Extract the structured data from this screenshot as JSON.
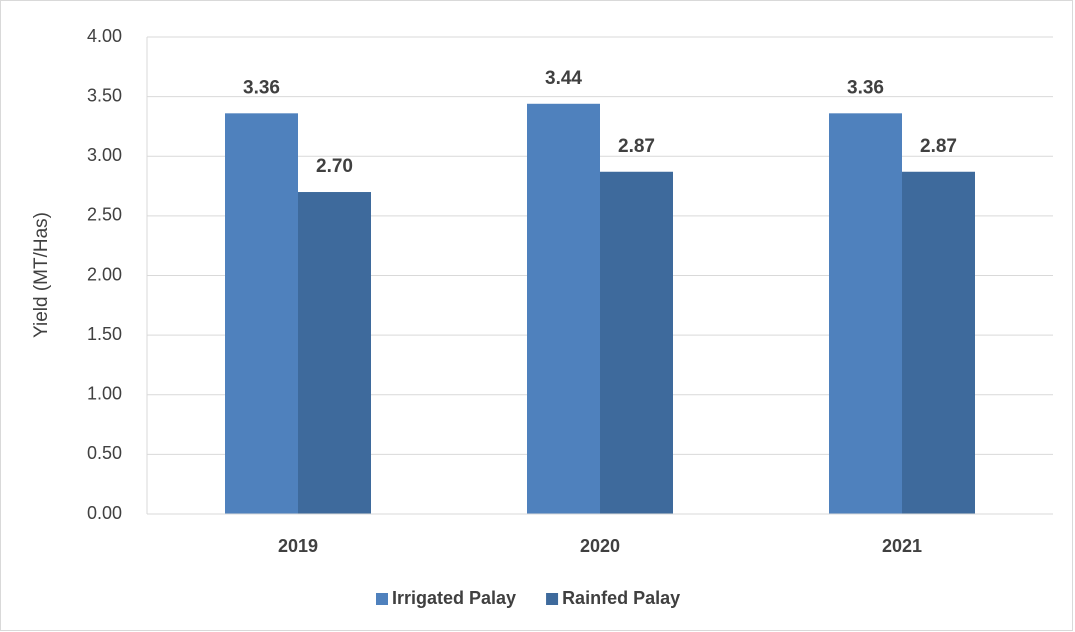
{
  "chart_data": {
    "type": "bar",
    "y_label": "Yield (MT/Has)",
    "categories": [
      "2019",
      "2020",
      "2021"
    ],
    "series": [
      {
        "name": "Irrigated Palay",
        "color": "#4f81bd",
        "values": [
          3.36,
          3.44,
          3.36
        ],
        "value_labels": [
          "3.36",
          "3.44",
          "3.36"
        ]
      },
      {
        "name": "Rainfed Palay",
        "color": "#3e6a9c",
        "values": [
          2.7,
          2.87,
          2.87
        ],
        "value_labels": [
          "2.70",
          "2.87",
          "2.87"
        ]
      }
    ],
    "ylim": [
      0,
      4
    ],
    "yticks": [
      {
        "value": 0,
        "label": "0.00"
      },
      {
        "value": 0.5,
        "label": "0.50"
      },
      {
        "value": 1,
        "label": "1.00"
      },
      {
        "value": 1.5,
        "label": "1.50"
      },
      {
        "value": 2,
        "label": "2.00"
      },
      {
        "value": 2.5,
        "label": "2.50"
      },
      {
        "value": 3,
        "label": "3.00"
      },
      {
        "value": 3.5,
        "label": "3.50"
      },
      {
        "value": 4,
        "label": "4.00"
      }
    ],
    "grid": true,
    "legend": "bottom"
  }
}
